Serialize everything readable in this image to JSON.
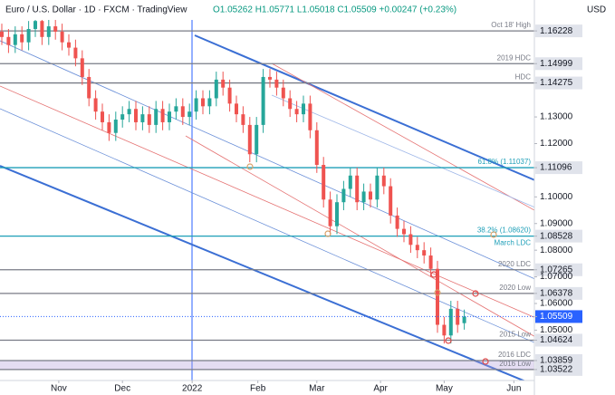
{
  "chart_data": {
    "type": "candlestick",
    "title": "Euro / U.S. Dollar · 1D · FXCM · TradingView",
    "ohlc_text": "O1.05262 H1.05771 L1.05018 C1.05509 +0.00247 (+0.23%)",
    "currency": "USD",
    "up_color": "#26a69a",
    "down_color": "#ef5350",
    "current_price_color": "#2962ff",
    "zone_color": "#b39ddb",
    "ylim": [
      1.0311,
      1.1664
    ],
    "xlim": [
      -0.27,
      79.46
    ],
    "open": [
      1.162,
      1.16,
      1.157,
      1.161,
      1.158,
      1.163,
      1.166,
      1.16,
      1.164,
      1.162,
      1.158,
      1.156,
      1.152,
      1.145,
      1.137,
      1.132,
      1.128,
      1.124,
      1.129,
      1.131,
      1.133,
      1.128,
      1.131,
      1.127,
      1.133,
      1.128,
      1.132,
      1.134,
      1.13,
      1.132,
      1.137,
      1.134,
      1.137,
      1.144,
      1.141,
      1.135,
      1.131,
      1.127,
      1.116,
      1.127,
      1.145,
      1.144,
      1.141,
      1.137,
      1.133,
      1.131,
      1.135,
      1.125,
      1.112,
      1.099,
      1.089,
      1.098,
      1.103,
      1.108,
      1.098,
      1.102,
      1.099,
      1.108,
      1.104,
      1.093,
      1.088,
      1.086,
      1.082,
      1.08,
      1.078,
      1.073,
      1.052,
      1.048,
      1.058,
      1.05262
    ],
    "high": [
      1.165,
      1.163,
      1.164,
      1.164,
      1.166,
      1.169,
      1.169,
      1.167,
      1.167,
      1.165,
      1.161,
      1.159,
      1.155,
      1.148,
      1.14,
      1.135,
      1.131,
      1.132,
      1.134,
      1.136,
      1.136,
      1.134,
      1.134,
      1.136,
      1.136,
      1.135,
      1.137,
      1.137,
      1.135,
      1.14,
      1.14,
      1.14,
      1.147,
      1.147,
      1.144,
      1.138,
      1.134,
      1.13,
      1.13,
      1.148,
      1.148,
      1.147,
      1.144,
      1.14,
      1.136,
      1.138,
      1.138,
      1.128,
      1.115,
      1.102,
      1.101,
      1.106,
      1.111,
      1.111,
      1.105,
      1.105,
      1.111,
      1.111,
      1.107,
      1.096,
      1.091,
      1.089,
      1.085,
      1.083,
      1.081,
      1.076,
      1.055,
      1.061,
      1.061,
      1.05771
    ],
    "low": [
      1.157,
      1.154,
      1.154,
      1.155,
      1.155,
      1.16,
      1.157,
      1.157,
      1.159,
      1.155,
      1.153,
      1.149,
      1.142,
      1.134,
      1.129,
      1.125,
      1.121,
      1.121,
      1.126,
      1.128,
      1.125,
      1.125,
      1.124,
      1.124,
      1.125,
      1.125,
      1.129,
      1.127,
      1.127,
      1.129,
      1.131,
      1.131,
      1.134,
      1.138,
      1.132,
      1.128,
      1.124,
      1.113,
      1.113,
      1.124,
      1.141,
      1.138,
      1.134,
      1.13,
      1.128,
      1.128,
      1.122,
      1.109,
      1.096,
      1.086,
      1.086,
      1.095,
      1.1,
      1.095,
      1.095,
      1.096,
      1.096,
      1.101,
      1.09,
      1.085,
      1.083,
      1.079,
      1.077,
      1.075,
      1.07,
      1.049,
      1.045,
      1.045,
      1.049,
      1.05018
    ],
    "close": [
      1.16,
      1.157,
      1.161,
      1.158,
      1.163,
      1.166,
      1.16,
      1.164,
      1.162,
      1.158,
      1.156,
      1.152,
      1.145,
      1.137,
      1.132,
      1.128,
      1.124,
      1.129,
      1.131,
      1.133,
      1.128,
      1.131,
      1.127,
      1.133,
      1.128,
      1.132,
      1.134,
      1.13,
      1.132,
      1.137,
      1.134,
      1.137,
      1.144,
      1.141,
      1.135,
      1.131,
      1.127,
      1.116,
      1.127,
      1.145,
      1.144,
      1.141,
      1.137,
      1.133,
      1.131,
      1.135,
      1.125,
      1.112,
      1.099,
      1.089,
      1.098,
      1.103,
      1.108,
      1.098,
      1.102,
      1.099,
      1.108,
      1.104,
      1.093,
      1.088,
      1.086,
      1.082,
      1.08,
      1.078,
      1.073,
      1.052,
      1.048,
      1.058,
      1.052,
      1.05509
    ],
    "xticks": [
      {
        "value": 8.5,
        "label": "Nov"
      },
      {
        "value": 18,
        "label": "Dec"
      },
      {
        "value": 28.4,
        "label": "2022"
      },
      {
        "value": 38.2,
        "label": "Feb"
      },
      {
        "value": 47,
        "label": "Mar"
      },
      {
        "value": 56.5,
        "label": "Apr"
      },
      {
        "value": 66,
        "label": "May"
      },
      {
        "value": 76.4,
        "label": "Jun"
      }
    ],
    "yticks": [
      {
        "value": 1.16228,
        "label": "1.16228"
      },
      {
        "value": 1.14999,
        "label": "1.14999"
      },
      {
        "value": 1.14275,
        "label": "1.14275"
      },
      {
        "value": 1.13,
        "label": "1.13000"
      },
      {
        "value": 1.12,
        "label": "1.12000"
      },
      {
        "value": 1.11096,
        "label": "1.11096"
      },
      {
        "value": 1.1,
        "label": "1.10000"
      },
      {
        "value": 1.09,
        "label": "1.09000"
      },
      {
        "value": 1.08528,
        "label": "1.08528"
      },
      {
        "value": 1.08,
        "label": "1.08000"
      },
      {
        "value": 1.07265,
        "label": "1.07265"
      },
      {
        "value": 1.07,
        "label": "1.07000"
      },
      {
        "value": 1.06378,
        "label": "1.06378"
      },
      {
        "value": 1.06,
        "label": "1.06000"
      },
      {
        "value": 1.05509,
        "label": "1.05509"
      },
      {
        "value": 1.05,
        "label": "1.05000"
      },
      {
        "value": 1.04624,
        "label": "1.04624"
      },
      {
        "value": 1.03859,
        "label": "1.03859"
      },
      {
        "value": 1.03522,
        "label": "1.03522"
      }
    ],
    "levels": [
      {
        "value": 1.16228,
        "labels": [
          "Oct 18' High"
        ],
        "color": "#787b86"
      },
      {
        "value": 1.14999,
        "labels": [
          "2019 HDC"
        ],
        "color": "#787b86"
      },
      {
        "value": 1.14275,
        "labels": [
          "HDC"
        ],
        "color": "#787b86"
      },
      {
        "value": 1.11096,
        "labels": [
          "61.8% (1.11037)"
        ],
        "color": "#1e9fb8"
      },
      {
        "value": 1.08528,
        "labels": [
          "38.2% (1.08620)",
          "March LDC"
        ],
        "color": "#1e9fb8"
      },
      {
        "value": 1.07265,
        "labels": [
          "2020 LDC"
        ],
        "color": "#787b86"
      },
      {
        "value": 1.06378,
        "labels": [
          "2020 Low"
        ],
        "color": "#787b86"
      },
      {
        "value": 1.04624,
        "labels": [
          "2015 Low"
        ],
        "color": "#787b86"
      },
      {
        "value": 1.03859,
        "labels": [
          "2016 LDC"
        ],
        "color": "#787b86"
      },
      {
        "value": 1.03522,
        "labels": [
          "2016 Low"
        ],
        "color": "#787b86"
      }
    ]
  }
}
